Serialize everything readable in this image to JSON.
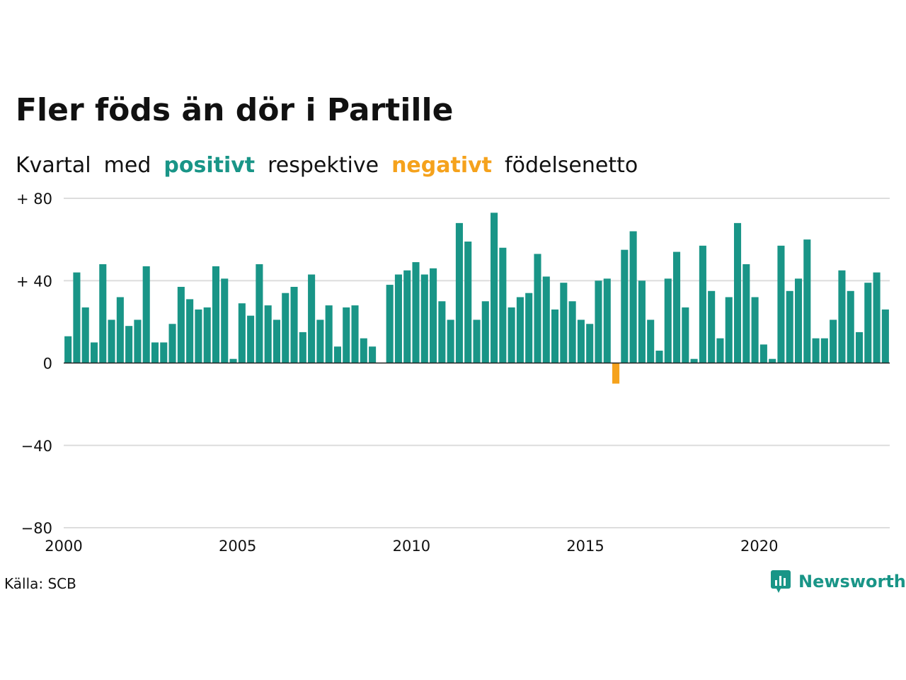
{
  "title": "Fler föds än dör i Partille",
  "subtitle": {
    "w1": "Kvartal",
    "w2": "med",
    "positive": "positivt",
    "w3": "respektive",
    "negative": "negativt",
    "w4": "födelsenetto"
  },
  "source": "Källa: SCB",
  "brand": {
    "name": "Newsworthy",
    "icon": "newsworthy-logo-icon"
  },
  "colors": {
    "positive": "#199587",
    "negative": "#f5a21c",
    "grid": "#dddddd",
    "text": "#111111"
  },
  "chart_data": {
    "type": "bar",
    "start_year": 2000,
    "periods_per_year": 4,
    "x_tick_labels": [
      "2000",
      "2005",
      "2010",
      "2015",
      "2020"
    ],
    "y_tick_labels": [
      "+ 80",
      "+ 40",
      "0",
      "−40",
      "−80"
    ],
    "y_ticks": [
      80,
      40,
      0,
      -40,
      -80
    ],
    "ylim": [
      -80,
      80
    ],
    "grid": true,
    "values": [
      13,
      44,
      27,
      10,
      48,
      21,
      32,
      18,
      21,
      47,
      10,
      10,
      19,
      37,
      31,
      26,
      27,
      47,
      41,
      2,
      29,
      23,
      48,
      28,
      21,
      34,
      37,
      15,
      43,
      21,
      28,
      8,
      27,
      28,
      12,
      8,
      0,
      38,
      43,
      45,
      49,
      43,
      46,
      30,
      21,
      68,
      59,
      21,
      30,
      73,
      56,
      27,
      32,
      34,
      53,
      42,
      26,
      39,
      30,
      21,
      19,
      40,
      41,
      -10,
      55,
      64,
      40,
      21,
      6,
      41,
      54,
      27,
      2,
      57,
      35,
      12,
      32,
      68,
      48,
      32,
      9,
      2,
      57,
      35,
      41,
      60,
      12,
      12,
      21,
      45,
      35,
      15,
      39,
      44,
      26
    ]
  }
}
